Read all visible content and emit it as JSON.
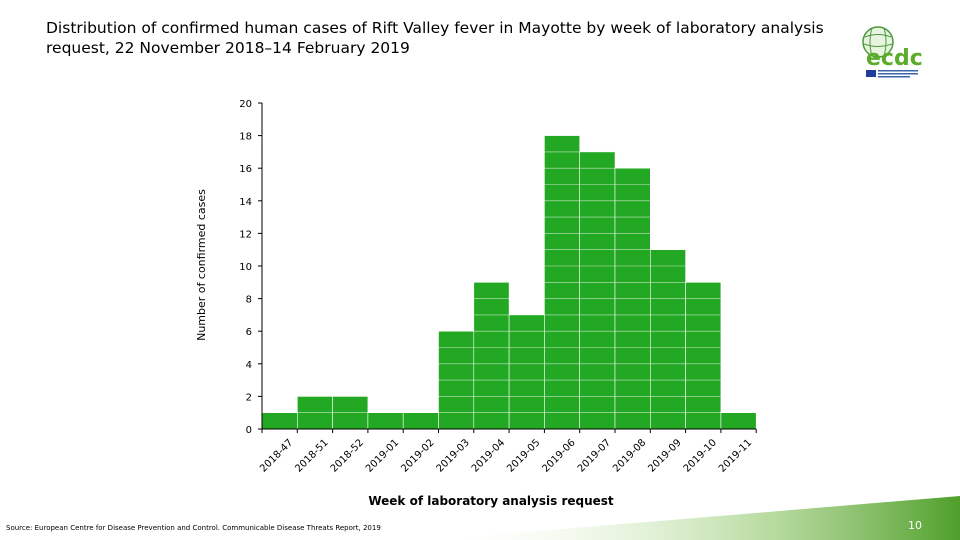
{
  "title": "Distribution of confirmed human cases of Rift Valley fever in Mayotte by week of laboratory analysis request, 22 November 2018–14 February 2019",
  "logo": {
    "name": "ecdc-logo",
    "text": "ecdc",
    "subtext": "EUROPEAN CENTRE FOR DISEASE PREVENTION AND CONTROL"
  },
  "source": "Source: European Centre for Disease Prevention and Control. Communicable Disease Threats Report, 2019",
  "page_number": "10",
  "colors": {
    "bar": "#22a822",
    "bar_grid": "#c8e6c8",
    "footer_green": "#5aac2a"
  },
  "chart_data": {
    "type": "bar",
    "title": "",
    "xlabel": "Week of laboratory analysis request",
    "ylabel": "Number of confirmed cases",
    "ylim": [
      0,
      20
    ],
    "yticks": [
      0,
      2,
      4,
      6,
      8,
      10,
      12,
      14,
      16,
      18,
      20
    ],
    "tick_labels": [
      "2018-47",
      "2018-51",
      "2018-52",
      "2019-01",
      "2019-02",
      "2019-03",
      "2019-04",
      "2019-05",
      "2019-06",
      "2019-07",
      "2019-08",
      "2019-09",
      "2019-10",
      "2019-11"
    ],
    "bars": [
      {
        "week": "2018-47",
        "value": 1
      },
      {
        "week": "2018-51",
        "value": 2
      },
      {
        "week": "2018-52",
        "value": 2
      },
      {
        "week": "2019-01",
        "value": 1
      },
      {
        "week": "2019-02",
        "value": 1
      },
      {
        "week": "2019-03",
        "value": 6
      },
      {
        "week": "2019-04",
        "value": 9
      },
      {
        "week": "2019-05",
        "value": 7
      },
      {
        "week": "2019-06",
        "value": 18
      },
      {
        "week": "2019-07",
        "value": 17
      },
      {
        "week": "2019-08",
        "value": 16
      },
      {
        "week": "2019-09",
        "value": 11
      },
      {
        "week": "2019-10",
        "value": 9
      },
      {
        "week": "2019-11",
        "value": 1
      }
    ],
    "grid": false,
    "legend": "none"
  }
}
